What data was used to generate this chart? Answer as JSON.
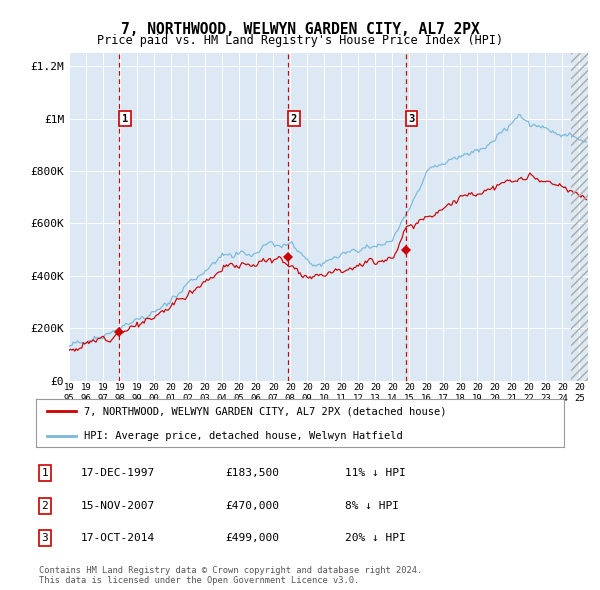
{
  "title": "7, NORTHWOOD, WELWYN GARDEN CITY, AL7 2PX",
  "subtitle": "Price paid vs. HM Land Registry's House Price Index (HPI)",
  "background_color": "#dce9f5",
  "plot_bg_color": "#dce9f5",
  "hpi_color": "#7ab8d9",
  "price_color": "#cc0000",
  "vline_color": "#cc0000",
  "sale1": {
    "date_num": 1997.96,
    "price": 183500,
    "label": "1"
  },
  "sale2": {
    "date_num": 2007.88,
    "price": 470000,
    "label": "2"
  },
  "sale3": {
    "date_num": 2014.79,
    "price": 499000,
    "label": "3"
  },
  "xmin": 1995.0,
  "xmax": 2025.5,
  "ymin": 0,
  "ymax": 1250000,
  "yticks": [
    0,
    200000,
    400000,
    600000,
    800000,
    1000000,
    1200000
  ],
  "ylabel_map": {
    "0": "£0",
    "200000": "£200K",
    "400000": "£400K",
    "600000": "£600K",
    "800000": "£800K",
    "1000000": "£1M",
    "1200000": "£1.2M"
  },
  "legend_red": "7, NORTHWOOD, WELWYN GARDEN CITY, AL7 2PX (detached house)",
  "legend_blue": "HPI: Average price, detached house, Welwyn Hatfield",
  "footer": "Contains HM Land Registry data © Crown copyright and database right 2024.\nThis data is licensed under the Open Government Licence v3.0.",
  "table": [
    {
      "num": "1",
      "date": "17-DEC-1997",
      "price": "£183,500",
      "pct": "11% ↓ HPI"
    },
    {
      "num": "2",
      "date": "15-NOV-2007",
      "price": "£470,000",
      "pct": "8% ↓ HPI"
    },
    {
      "num": "3",
      "date": "17-OCT-2014",
      "price": "£499,000",
      "pct": "20% ↓ HPI"
    }
  ],
  "xtick_years": [
    1995,
    1996,
    1997,
    1998,
    1999,
    2000,
    2001,
    2002,
    2003,
    2004,
    2005,
    2006,
    2007,
    2008,
    2009,
    2010,
    2011,
    2012,
    2013,
    2014,
    2015,
    2016,
    2017,
    2018,
    2019,
    2020,
    2021,
    2022,
    2023,
    2024,
    2025
  ]
}
